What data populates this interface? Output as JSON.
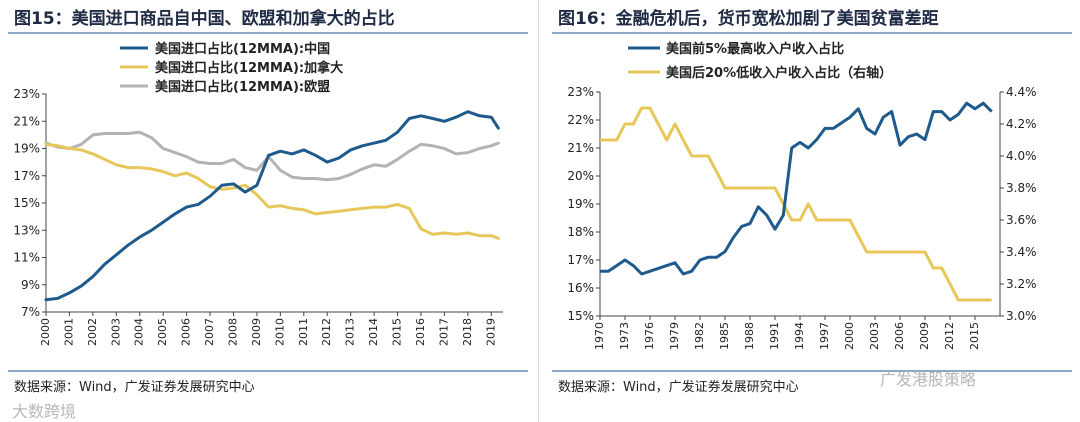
{
  "panel1": {
    "title": "图15：美国进口商品自中国、欧盟和加拿大的占比",
    "source": "数据来源：Wind，广发证券发展研究中心"
  },
  "panel2": {
    "title": "图16：金融危机后，货币宽松加剧了美国贫富差距",
    "source": "数据来源：Wind，广发证券发展研究中心"
  },
  "watermarks": {
    "left": "大数跨境",
    "right": "广发港股策略"
  },
  "chart_data": [
    {
      "type": "line",
      "title": "图15：美国进口商品自中国、欧盟和加拿大的占比",
      "x": [
        2000,
        2000.5,
        2001,
        2001.5,
        2002,
        2002.5,
        2003,
        2003.5,
        2004,
        2004.5,
        2005,
        2005.5,
        2006,
        2006.5,
        2007,
        2007.5,
        2008,
        2008.5,
        2009,
        2009.5,
        2010,
        2010.5,
        2011,
        2011.5,
        2012,
        2012.5,
        2013,
        2013.5,
        2014,
        2014.5,
        2015,
        2015.5,
        2016,
        2016.5,
        2017,
        2017.5,
        2018,
        2018.5,
        2019,
        2019.3
      ],
      "xticks": [
        "2000",
        "2001",
        "2002",
        "2003",
        "2004",
        "2005",
        "2006",
        "2007",
        "2008",
        "2009",
        "2010",
        "2011",
        "2012",
        "2013",
        "2014",
        "2015",
        "2016",
        "2017",
        "2018",
        "2019"
      ],
      "yticks": [
        "7%",
        "9%",
        "11%",
        "13%",
        "15%",
        "17%",
        "19%",
        "21%",
        "23%"
      ],
      "ylim": [
        7,
        23
      ],
      "legend_position": "top",
      "series": [
        {
          "name": "美国进口占比(12MMA):中国",
          "color": "#1f5a8c",
          "values": [
            7.9,
            8.0,
            8.4,
            8.9,
            9.6,
            10.5,
            11.2,
            11.9,
            12.5,
            13.0,
            13.6,
            14.2,
            14.7,
            14.9,
            15.5,
            16.3,
            16.4,
            15.8,
            16.3,
            18.5,
            18.8,
            18.6,
            18.9,
            18.5,
            18.0,
            18.3,
            18.9,
            19.2,
            19.4,
            19.6,
            20.2,
            21.2,
            21.4,
            21.2,
            21.0,
            21.3,
            21.7,
            21.4,
            21.3,
            20.5
          ]
        },
        {
          "name": "美国进口占比(12MMA):加拿大",
          "color": "#e8c75a",
          "values": [
            19.3,
            19.2,
            19.0,
            18.9,
            18.6,
            18.2,
            17.8,
            17.6,
            17.6,
            17.5,
            17.3,
            17.0,
            17.2,
            16.8,
            16.2,
            16.0,
            16.1,
            16.3,
            15.6,
            14.7,
            14.8,
            14.6,
            14.5,
            14.2,
            14.3,
            14.4,
            14.5,
            14.6,
            14.7,
            14.7,
            14.9,
            14.6,
            13.1,
            12.7,
            12.8,
            12.7,
            12.8,
            12.6,
            12.6,
            12.4
          ]
        },
        {
          "name": "美国进口占比(12MMA):欧盟",
          "color": "#b3b3b3",
          "values": [
            19.4,
            19.1,
            19.0,
            19.3,
            20.0,
            20.1,
            20.1,
            20.1,
            20.2,
            19.8,
            19.0,
            18.7,
            18.4,
            18.0,
            17.9,
            17.9,
            18.2,
            17.6,
            17.4,
            18.4,
            17.4,
            16.9,
            16.8,
            16.8,
            16.7,
            16.8,
            17.1,
            17.5,
            17.8,
            17.7,
            18.2,
            18.8,
            19.3,
            19.2,
            19.0,
            18.6,
            18.7,
            19.0,
            19.2,
            19.4
          ]
        }
      ]
    },
    {
      "type": "line",
      "title": "图16：金融危机后，货币宽松加剧了美国贫富差距",
      "x": [
        1970,
        1971,
        1972,
        1973,
        1974,
        1975,
        1976,
        1977,
        1978,
        1979,
        1980,
        1981,
        1982,
        1983,
        1984,
        1985,
        1986,
        1987,
        1988,
        1989,
        1990,
        1991,
        1992,
        1993,
        1994,
        1995,
        1996,
        1997,
        1998,
        1999,
        2000,
        2001,
        2002,
        2003,
        2004,
        2005,
        2006,
        2007,
        2008,
        2009,
        2010,
        2011,
        2012,
        2013,
        2014,
        2015,
        2016,
        2017
      ],
      "xticks": [
        "1970",
        "1973",
        "1976",
        "1979",
        "1982",
        "1985",
        "1988",
        "1991",
        "1994",
        "1997",
        "2000",
        "2003",
        "2006",
        "2009",
        "2012",
        "2015"
      ],
      "yticks_left": [
        "15%",
        "16%",
        "17%",
        "18%",
        "19%",
        "20%",
        "21%",
        "22%",
        "23%"
      ],
      "yticks_right": [
        "3.0%",
        "3.2%",
        "3.4%",
        "3.6%",
        "3.8%",
        "4.0%",
        "4.2%",
        "4.4%"
      ],
      "ylim_left": [
        15,
        23
      ],
      "ylim_right": [
        3.0,
        4.4
      ],
      "legend_position": "top",
      "series": [
        {
          "name": "美国前5%最高收入户收入占比",
          "axis": "left",
          "color": "#1f5a8c",
          "values": [
            16.6,
            16.6,
            16.8,
            17.0,
            16.8,
            16.5,
            16.6,
            16.7,
            16.8,
            16.9,
            16.5,
            16.6,
            17.0,
            17.1,
            17.1,
            17.3,
            17.8,
            18.2,
            18.3,
            18.9,
            18.6,
            18.1,
            18.6,
            21.0,
            21.2,
            21.0,
            21.3,
            21.7,
            21.7,
            21.9,
            22.1,
            22.4,
            21.7,
            21.5,
            22.1,
            22.3,
            21.1,
            21.4,
            21.5,
            21.3,
            22.3,
            22.3,
            22.0,
            22.2,
            22.6,
            22.4,
            22.6,
            22.3
          ]
        },
        {
          "name": "美国后20%低收入户收入占比（右轴）",
          "axis": "right",
          "color": "#e8c75a",
          "values": [
            4.1,
            4.1,
            4.1,
            4.2,
            4.2,
            4.3,
            4.3,
            4.2,
            4.1,
            4.2,
            4.1,
            4.0,
            4.0,
            4.0,
            3.9,
            3.8,
            3.8,
            3.8,
            3.8,
            3.8,
            3.8,
            3.8,
            3.7,
            3.6,
            3.6,
            3.7,
            3.6,
            3.6,
            3.6,
            3.6,
            3.6,
            3.5,
            3.4,
            3.4,
            3.4,
            3.4,
            3.4,
            3.4,
            3.4,
            3.4,
            3.3,
            3.3,
            3.2,
            3.1,
            3.1,
            3.1,
            3.1,
            3.1
          ]
        }
      ]
    }
  ]
}
